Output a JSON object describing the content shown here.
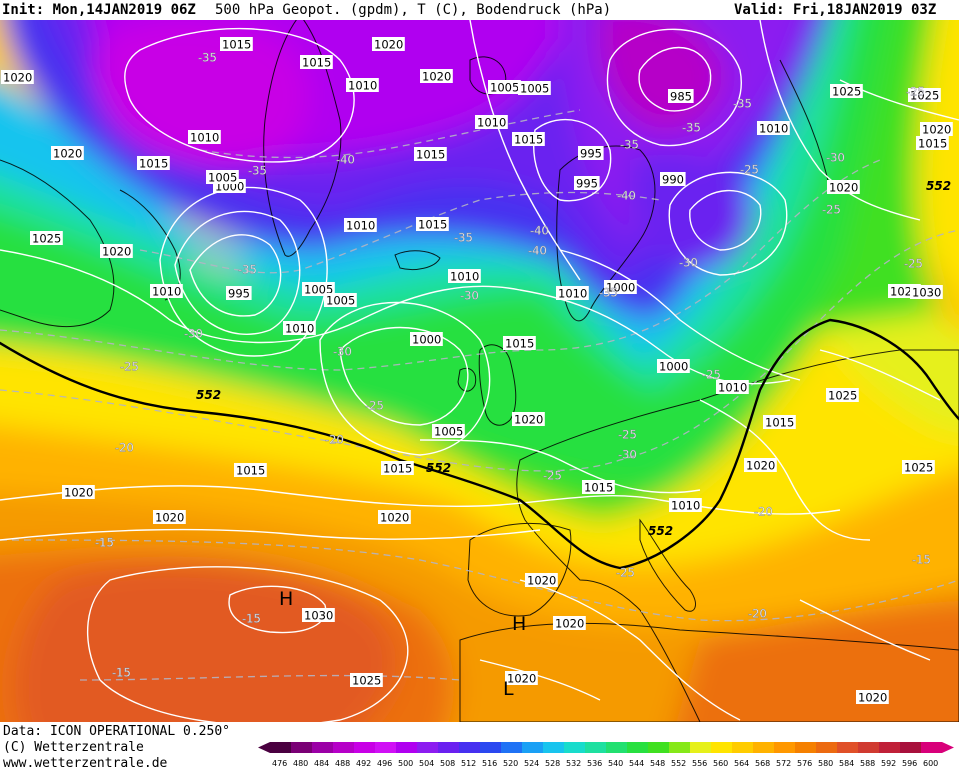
{
  "header": {
    "init": "Init: Mon,14JAN2019 06Z",
    "title": "500 hPa Geopot. (gpdm), T (C), Bodendruck (hPa)",
    "valid": "Valid: Fri,18JAN2019 03Z"
  },
  "footer": {
    "data_source": "Data: ICON OPERATIONAL 0.250°",
    "copyright": "(C) Wetterzentrale",
    "website": "www.wetterzentrale.de"
  },
  "colorbar": {
    "ticks": [
      "476",
      "480",
      "484",
      "488",
      "492",
      "496",
      "500",
      "504",
      "508",
      "512",
      "516",
      "520",
      "524",
      "528",
      "532",
      "536",
      "540",
      "544",
      "548",
      "552",
      "556",
      "560",
      "564",
      "568",
      "572",
      "576",
      "580",
      "584",
      "588",
      "592",
      "596",
      "600"
    ],
    "colors": [
      "#4a0040",
      "#7a0075",
      "#9b00a6",
      "#b600c8",
      "#c800e6",
      "#d010f5",
      "#b000f0",
      "#8c1cf0",
      "#6a20f0",
      "#4630f0",
      "#2a48f0",
      "#1f72f5",
      "#1aa0f5",
      "#18c4ee",
      "#18dccc",
      "#1ee0a0",
      "#22e070",
      "#28e040",
      "#40e020",
      "#86e818",
      "#e6f01a",
      "#ffe400",
      "#ffcc00",
      "#ffb200",
      "#ff9800",
      "#f58000",
      "#ec6a10",
      "#e05028",
      "#d03a30",
      "#c02038",
      "#a8103c",
      "#d8007a"
    ]
  },
  "pressure_labels": [
    "1015",
    "1015",
    "1020",
    "1020",
    "1010",
    "1010",
    "1025",
    "1020",
    "1015",
    "1010",
    "1000",
    "1005",
    "1010",
    "1015",
    "995",
    "1005",
    "1005",
    "1010",
    "1015",
    "1010",
    "1000",
    "1010",
    "1015",
    "1010",
    "1025",
    "1020",
    "1015",
    "1020",
    "1010",
    "1005",
    "1005",
    "1015",
    "1020",
    "995",
    "995",
    "1000",
    "990",
    "985",
    "1000",
    "1010",
    "1005",
    "1030",
    "1025",
    "1020",
    "1020",
    "1025",
    "1015",
    "1025",
    "1010",
    "1015",
    "1020",
    "1015",
    "1025",
    "1020",
    "1015",
    "1030",
    "1025",
    "1020",
    "1020",
    "1020",
    "1020",
    "1020",
    "1020"
  ],
  "temperature_labels": [
    "-35",
    "-35",
    "-40",
    "-40",
    "-35",
    "-30",
    "-35",
    "-30",
    "-30",
    "-25",
    "-30",
    "-25",
    "-25",
    "-20",
    "-20",
    "-15",
    "-25",
    "-30",
    "-35",
    "-40",
    "-35",
    "-25",
    "-25",
    "-25",
    "-30",
    "-25",
    "-20",
    "-15",
    "-15",
    "-15",
    "-25",
    "-25",
    "-20",
    "-35",
    "-35",
    "-40"
  ],
  "height_552_labels": [
    "552",
    "552",
    "552",
    "552"
  ],
  "pressure_centers": [
    "H",
    "H",
    "L"
  ],
  "colors": {
    "contour": "#ffffff",
    "isotherm": "#b4b4c4",
    "coastline": "#000000",
    "geopotential_552": "#000000"
  }
}
